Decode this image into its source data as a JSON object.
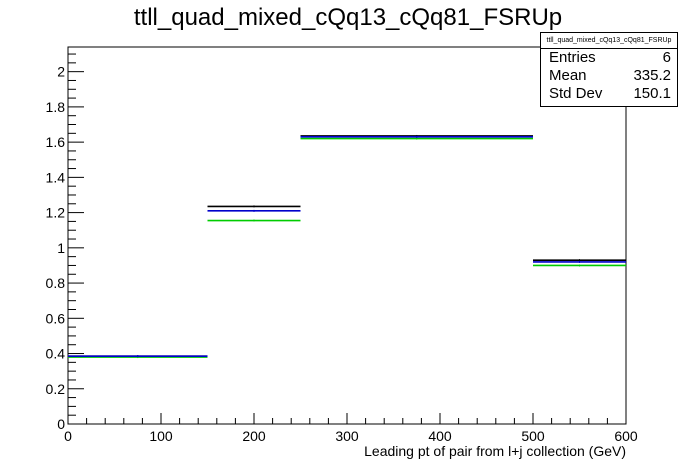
{
  "title": "ttll_quad_mixed_cQq13_cQq81_FSRUp",
  "stats_box": {
    "name": "ttll_quad_mixed_cQq13_cQq81_FSRUp",
    "rows": [
      {
        "label": "Entries",
        "value": "6"
      },
      {
        "label": "Mean",
        "value": "335.2"
      },
      {
        "label": "Std Dev",
        "value": "150.1"
      }
    ]
  },
  "chart_data": {
    "type": "histogram",
    "xlabel": "Leading pt of pair from l+j collection (GeV)",
    "ylabel": "",
    "xlim": [
      0,
      600
    ],
    "ylim": [
      0,
      2.14
    ],
    "x_ticks": [
      "0",
      "100",
      "200",
      "300",
      "400",
      "500",
      "600"
    ],
    "y_ticks": [
      "0",
      "0.2",
      "0.4",
      "0.6",
      "0.8",
      "1",
      "1.2",
      "1.4",
      "1.6",
      "1.8",
      "2"
    ],
    "bins": [
      [
        0,
        150
      ],
      [
        150,
        250
      ],
      [
        250,
        500
      ],
      [
        500,
        600
      ]
    ],
    "series": [
      {
        "color": "#000000",
        "values": [
          0.385,
          1.235,
          1.635,
          0.93
        ]
      },
      {
        "color": "#00cc00",
        "values": [
          0.38,
          1.155,
          1.62,
          0.9
        ]
      },
      {
        "color": "#0000cc",
        "values": [
          0.385,
          1.21,
          1.63,
          0.92
        ]
      }
    ]
  }
}
